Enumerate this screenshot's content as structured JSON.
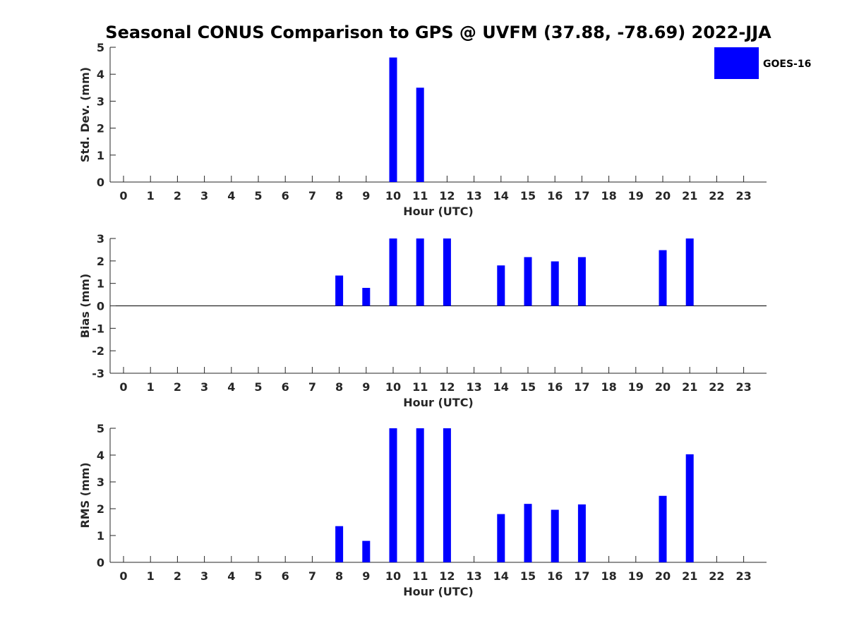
{
  "title": "Seasonal CONUS Comparison to GPS @ UVFM (37.88, -78.69) 2022-JJA",
  "colors": {
    "bar": "#0000ff",
    "axis": "#262626",
    "background": "#ffffff"
  },
  "legend": {
    "label": "GOES-16",
    "placement": "top-right"
  },
  "chart_data": [
    {
      "type": "bar",
      "name": "std-dev",
      "xlabel": "Hour (UTC)",
      "ylabel": "Std. Dev. (mm)",
      "ylim": [
        0,
        5
      ],
      "yticks": [
        0,
        1,
        2,
        3,
        4,
        5
      ],
      "categories": [
        "0",
        "1",
        "2",
        "3",
        "4",
        "5",
        "6",
        "7",
        "8",
        "9",
        "10",
        "11",
        "12",
        "13",
        "14",
        "15",
        "16",
        "17",
        "18",
        "19",
        "20",
        "21",
        "22",
        "23"
      ],
      "series": [
        {
          "name": "GOES-16",
          "values": [
            null,
            null,
            null,
            null,
            null,
            null,
            null,
            null,
            null,
            null,
            4.62,
            3.5,
            null,
            null,
            null,
            null,
            null,
            null,
            null,
            null,
            null,
            null,
            null,
            null
          ]
        }
      ],
      "zero_line": false
    },
    {
      "type": "bar",
      "name": "bias",
      "xlabel": "Hour (UTC)",
      "ylabel": "Bias (mm)",
      "ylim": [
        -3,
        3
      ],
      "yticks": [
        -3,
        -2,
        -1,
        0,
        1,
        2,
        3
      ],
      "categories": [
        "0",
        "1",
        "2",
        "3",
        "4",
        "5",
        "6",
        "7",
        "8",
        "9",
        "10",
        "11",
        "12",
        "13",
        "14",
        "15",
        "16",
        "17",
        "18",
        "19",
        "20",
        "21",
        "22",
        "23"
      ],
      "series": [
        {
          "name": "GOES-16",
          "values": [
            null,
            null,
            null,
            null,
            null,
            null,
            null,
            null,
            1.35,
            0.8,
            3.0,
            3.0,
            3.0,
            null,
            1.8,
            2.17,
            1.98,
            2.17,
            null,
            null,
            2.48,
            3.0,
            null,
            null
          ]
        }
      ],
      "zero_line": true
    },
    {
      "type": "bar",
      "name": "rms",
      "xlabel": "Hour (UTC)",
      "ylabel": "RMS (mm)",
      "ylim": [
        0,
        5
      ],
      "yticks": [
        0,
        1,
        2,
        3,
        4,
        5
      ],
      "categories": [
        "0",
        "1",
        "2",
        "3",
        "4",
        "5",
        "6",
        "7",
        "8",
        "9",
        "10",
        "11",
        "12",
        "13",
        "14",
        "15",
        "16",
        "17",
        "18",
        "19",
        "20",
        "21",
        "22",
        "23"
      ],
      "series": [
        {
          "name": "GOES-16",
          "values": [
            null,
            null,
            null,
            null,
            null,
            null,
            null,
            null,
            1.35,
            0.8,
            5.0,
            5.0,
            5.0,
            null,
            1.8,
            2.18,
            1.96,
            2.16,
            null,
            null,
            2.48,
            4.03,
            null,
            null
          ]
        }
      ],
      "zero_line": false
    }
  ]
}
